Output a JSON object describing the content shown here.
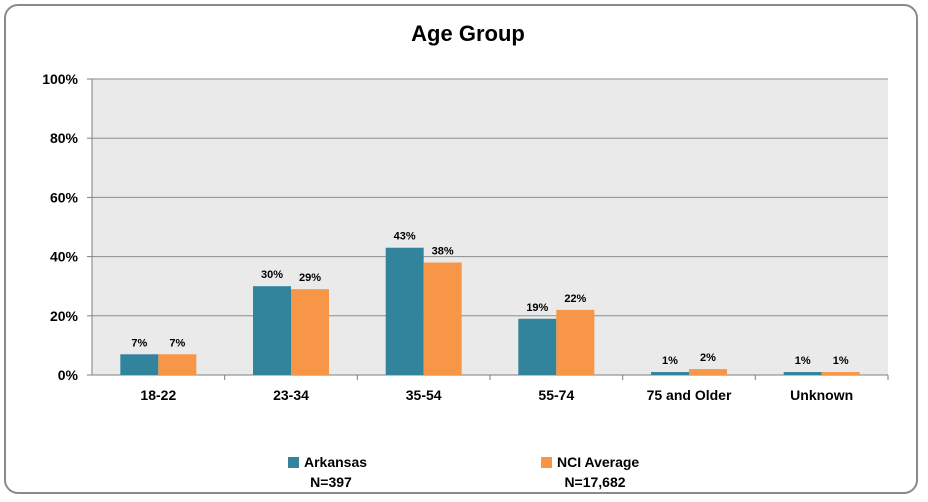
{
  "chart_data": {
    "type": "bar",
    "title": "Age Group",
    "categories": [
      "18-22",
      "23-34",
      "35-54",
      "55-74",
      "75 and Older",
      "Unknown"
    ],
    "series": [
      {
        "name": "Arkansas",
        "n_label": "N=397",
        "color": "#31849b",
        "values": [
          7,
          30,
          43,
          19,
          1,
          1
        ],
        "data_labels": [
          "7%",
          "30%",
          "43%",
          "19%",
          "1%",
          "1%"
        ]
      },
      {
        "name": "NCI Average",
        "n_label": "N=17,682",
        "color": "#f79646",
        "values": [
          7,
          29,
          38,
          22,
          2,
          1
        ],
        "data_labels": [
          "7%",
          "29%",
          "38%",
          "22%",
          "2%",
          "1%"
        ]
      }
    ],
    "ylim": [
      0,
      100
    ],
    "yticks": [
      0,
      20,
      40,
      60,
      80,
      100
    ],
    "ytick_labels": [
      "0%",
      "20%",
      "40%",
      "60%",
      "80%",
      "100%"
    ],
    "xlabel": "",
    "ylabel": "",
    "grid": true,
    "plot_background": "#eaeaea",
    "legend_position": "bottom"
  }
}
